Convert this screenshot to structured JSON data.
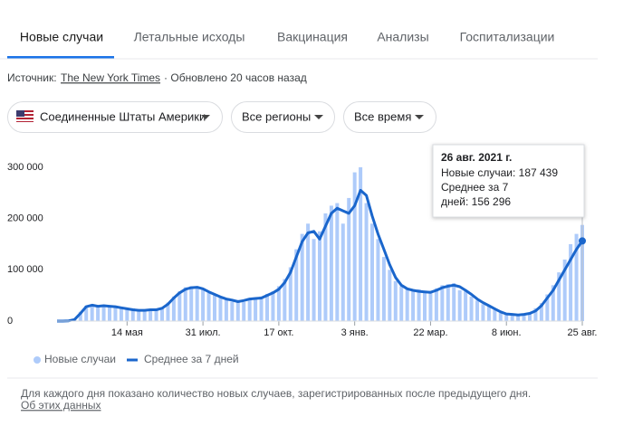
{
  "tabs": [
    "Новые случаи",
    "Летальные исходы",
    "Вакцинация",
    "Анализы",
    "Госпитализации"
  ],
  "source": {
    "label": "Источник:",
    "link": "The New York Times",
    "updated": "· Обновлено 20 часов назад"
  },
  "filters": [
    "Соединенные Штаты Америки",
    "Все регионы",
    "Все время"
  ],
  "chart_data": {
    "type": "combo",
    "categories": [
      null,
      null,
      null,
      null,
      null,
      null,
      null,
      null,
      null,
      null,
      null,
      null,
      "14 мая",
      null,
      null,
      null,
      null,
      null,
      null,
      null,
      null,
      null,
      null,
      null,
      null,
      "31 июл.",
      null,
      null,
      null,
      null,
      null,
      null,
      null,
      null,
      null,
      null,
      null,
      null,
      "17 окт.",
      null,
      null,
      null,
      null,
      null,
      null,
      null,
      null,
      null,
      null,
      null,
      null,
      "3 янв.",
      null,
      null,
      null,
      null,
      null,
      null,
      null,
      null,
      null,
      null,
      null,
      null,
      "22 мар.",
      null,
      null,
      null,
      null,
      null,
      null,
      null,
      null,
      null,
      null,
      null,
      null,
      "8 июн.",
      null,
      null,
      null,
      null,
      null,
      null,
      null,
      null,
      null,
      null,
      null,
      null,
      "25 авг."
    ],
    "series": [
      {
        "name": "Новые случаи",
        "type": "bar",
        "color": "#aecbfa",
        "values": [
          0,
          0,
          600,
          4000,
          18000,
          30000,
          33000,
          27000,
          32000,
          30000,
          26000,
          28000,
          22000,
          25000,
          20000,
          23000,
          21000,
          24000,
          27000,
          36000,
          48000,
          58000,
          66000,
          68000,
          65000,
          61000,
          55000,
          50000,
          46000,
          44000,
          38000,
          41000,
          37000,
          44000,
          42000,
          48000,
          53000,
          58000,
          68000,
          82000,
          105000,
          140000,
          170000,
          190000,
          160000,
          175000,
          210000,
          225000,
          230000,
          190000,
          240000,
          290000,
          300000,
          230000,
          190000,
          160000,
          125000,
          100000,
          78000,
          68000,
          61000,
          58000,
          62000,
          55000,
          59000,
          64000,
          70000,
          72000,
          74000,
          60000,
          58000,
          48000,
          40000,
          33000,
          28000,
          22000,
          16000,
          13000,
          14000,
          10000,
          15000,
          16000,
          25000,
          35000,
          52000,
          70000,
          95000,
          120000,
          150000,
          170000,
          187439
        ]
      },
      {
        "name": "Среднее за 7 дней",
        "type": "line",
        "color": "#1a66cc",
        "values": [
          0,
          0,
          500,
          3000,
          15000,
          28000,
          31000,
          29000,
          30000,
          29000,
          28000,
          26000,
          24000,
          22000,
          21000,
          21000,
          22000,
          22000,
          25000,
          33000,
          45000,
          55000,
          62000,
          65000,
          66000,
          63000,
          57000,
          52000,
          47000,
          43000,
          41000,
          38000,
          40000,
          43000,
          44000,
          45000,
          50000,
          55000,
          62000,
          75000,
          95000,
          125000,
          155000,
          172000,
          175000,
          160000,
          185000,
          210000,
          220000,
          215000,
          210000,
          225000,
          255000,
          245000,
          205000,
          170000,
          140000,
          110000,
          85000,
          70000,
          63000,
          60000,
          58000,
          57000,
          56000,
          60000,
          65000,
          68000,
          70000,
          67000,
          60000,
          52000,
          43000,
          36000,
          30000,
          24000,
          18000,
          14000,
          13000,
          12000,
          13000,
          15000,
          20000,
          30000,
          45000,
          60000,
          80000,
          100000,
          120000,
          140000,
          156296
        ]
      }
    ],
    "ylim": [
      0,
      340000
    ],
    "yticks": [
      0,
      {
        "value": 100000,
        "label": "100 000"
      },
      {
        "value": 200000,
        "label": "200 000"
      },
      {
        "value": 300000,
        "label": "300 000"
      }
    ],
    "grid": false,
    "tooltip": {
      "title": "26 авг. 2021 г.",
      "lines": [
        "Новые случаи: 187 439",
        "Среднее за 7",
        "дней: 156 296"
      ]
    }
  },
  "footer": {
    "note": "Для каждого дня показано количество новых случаев, зарегистрированных после предыдущего дня.",
    "link": "Об этих данных"
  }
}
